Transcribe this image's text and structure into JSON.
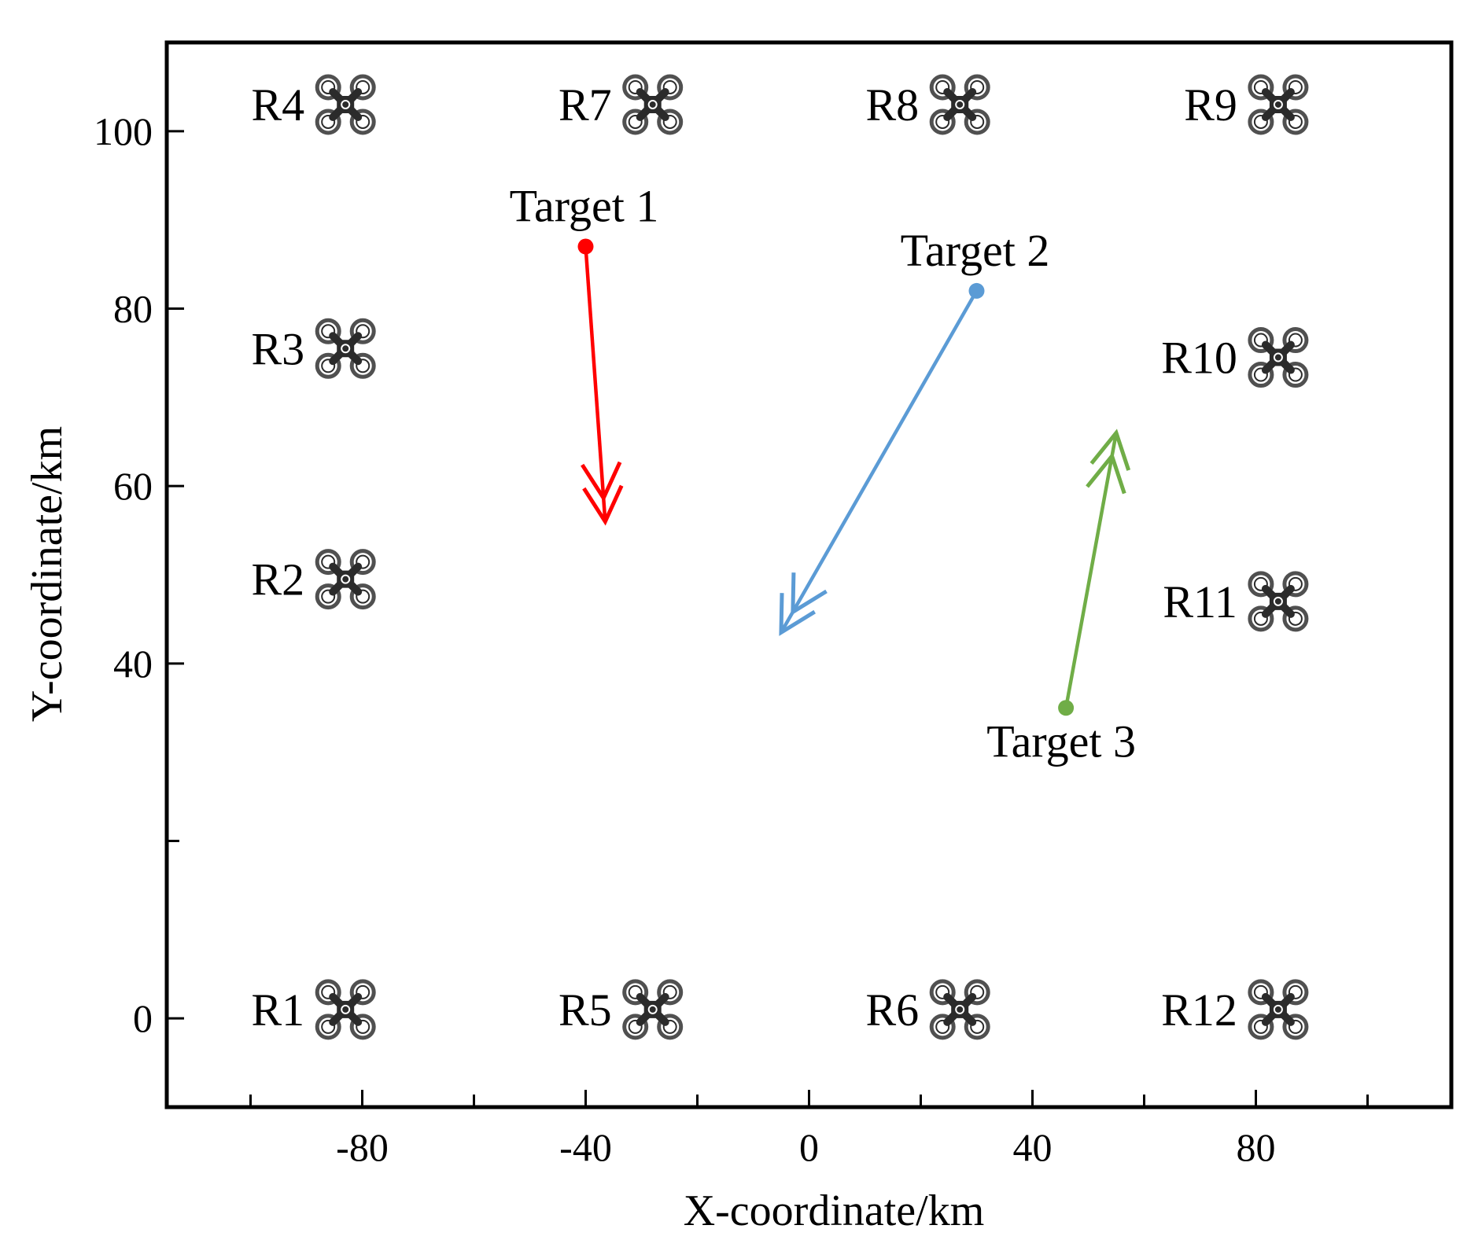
{
  "chart_data": {
    "type": "scatter",
    "title": "",
    "xlabel": "X-coordinate/km",
    "ylabel": "Y-coordinate/km",
    "xlim": [
      -115,
      115
    ],
    "ylim": [
      -10,
      110
    ],
    "x_ticks": [
      -80,
      -40,
      0,
      40,
      80
    ],
    "y_ticks": [
      0,
      40,
      60,
      80,
      100
    ],
    "grid": false,
    "radar_icon": "drone-icon",
    "radars": [
      {
        "label": "R1",
        "x": -83,
        "y": 1
      },
      {
        "label": "R2",
        "x": -83,
        "y": 49.5
      },
      {
        "label": "R3",
        "x": -83,
        "y": 75.5
      },
      {
        "label": "R4",
        "x": -83,
        "y": 103
      },
      {
        "label": "R5",
        "x": -28,
        "y": 1
      },
      {
        "label": "R6",
        "x": 27,
        "y": 1
      },
      {
        "label": "R7",
        "x": -28,
        "y": 103
      },
      {
        "label": "R8",
        "x": 27,
        "y": 103
      },
      {
        "label": "R9",
        "x": 84,
        "y": 103
      },
      {
        "label": "R10",
        "x": 84,
        "y": 74.5
      },
      {
        "label": "R11",
        "x": 84,
        "y": 47
      },
      {
        "label": "R12",
        "x": 84,
        "y": 1
      }
    ],
    "targets": [
      {
        "name": "Target 1",
        "start": {
          "x": -40,
          "y": 87
        },
        "end": {
          "x": -36.5,
          "y": 56
        },
        "color": "#ff0000"
      },
      {
        "name": "Target 2",
        "start": {
          "x": 30,
          "y": 82
        },
        "end": {
          "x": -5,
          "y": 43.5
        },
        "color": "#5b9bd5"
      },
      {
        "name": "Target 3",
        "start": {
          "x": 46,
          "y": 35
        },
        "end": {
          "x": 55,
          "y": 66
        },
        "color": "#70ad47"
      }
    ]
  }
}
